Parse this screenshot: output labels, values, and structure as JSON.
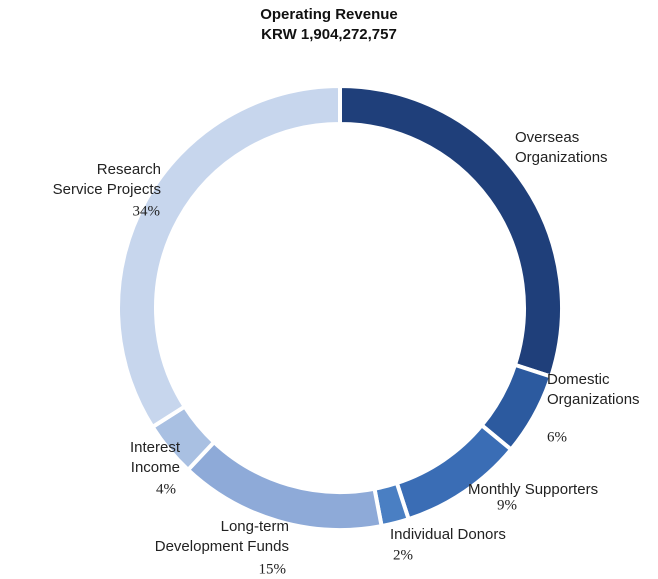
{
  "chart_data": {
    "type": "donut",
    "title": "Operating Revenue",
    "subtitle": "KRW 1,904,272,757",
    "categories": [
      "Overseas Organizations",
      "Domestic Organizations",
      "Monthly Supporters",
      "Individual Donors",
      "Long-term Development Funds",
      "Interest Income",
      "Research Service Projects"
    ],
    "values": [
      30,
      6,
      9,
      2,
      15,
      4,
      34
    ],
    "value_labels": [
      null,
      "6%",
      "9%",
      "2%",
      "15%",
      "4%",
      "34%"
    ],
    "colors": [
      "#1f3f7a",
      "#2c5a9f",
      "#3a6db5",
      "#4a7fc3",
      "#8eaad8",
      "#a9c0e2",
      "#c7d6ed"
    ]
  }
}
